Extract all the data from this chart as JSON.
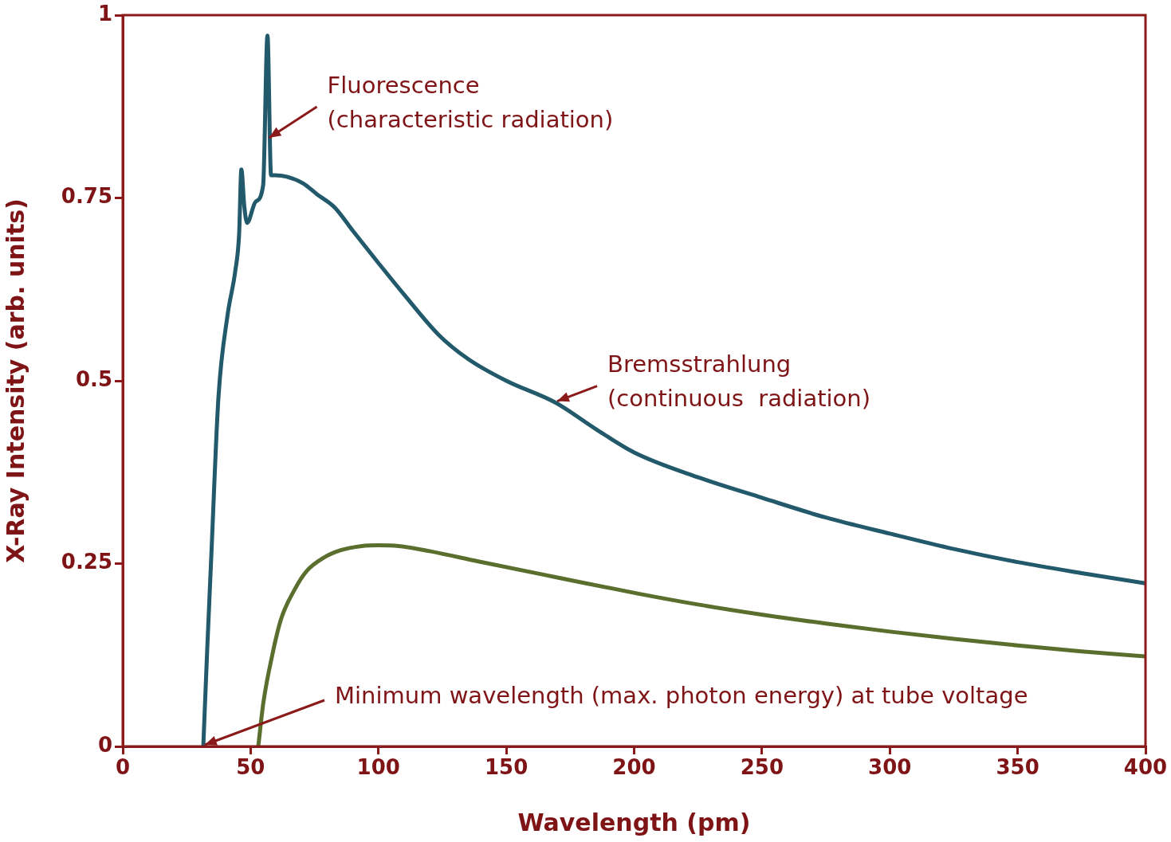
{
  "chart_data": {
    "type": "line",
    "xlabel": "Wavelength (pm)",
    "ylabel": "X-Ray Intensity (arb. units)",
    "xlim": [
      0,
      400
    ],
    "xticks": [
      0,
      50,
      100,
      150,
      200,
      250,
      300,
      350,
      400
    ],
    "ylim": [
      0,
      1
    ],
    "yticks": [
      0,
      0.25,
      0.5,
      0.75,
      1
    ],
    "grid": false,
    "legend": false,
    "marker": "none",
    "line_style": "solid",
    "series": [
      {
        "color": "#22596b",
        "x": [
          31.5,
          33,
          34.6,
          37.4,
          41,
          44,
          45.5,
          46.4,
          47.5,
          48.6,
          52,
          54.9,
          56.6,
          58,
          59.5,
          64.2,
          70.5,
          76,
          82.9,
          90,
          100,
          110,
          123.5,
          135,
          150,
          169.3,
          185,
          200,
          225,
          250,
          275,
          300,
          325,
          350,
          375,
          400
        ],
        "values": [
          0,
          0.13,
          0.258,
          0.476,
          0.59,
          0.65,
          0.7,
          0.789,
          0.74,
          0.716,
          0.745,
          0.767,
          0.972,
          0.781,
          0.781,
          0.779,
          0.77,
          0.755,
          0.737,
          0.705,
          0.661,
          0.618,
          0.563,
          0.53,
          0.5,
          0.47,
          0.434,
          0.402,
          0.368,
          0.34,
          0.313,
          0.291,
          0.27,
          0.252,
          0.237,
          0.223
        ]
      },
      {
        "color": "#5a6e2e",
        "x": [
          53,
          55,
          58.6,
          62,
          67.3,
          72,
          78.6,
          85,
          93.5,
          100,
          107.9,
          120,
          139,
          170,
          201.4,
          225,
          250.3,
          275,
          300,
          325,
          350,
          375,
          400
        ],
        "values": [
          0,
          0.06,
          0.127,
          0.175,
          0.215,
          0.24,
          0.258,
          0.268,
          0.274,
          0.275,
          0.274,
          0.267,
          0.253,
          0.231,
          0.209,
          0.194,
          0.18,
          0.168,
          0.157,
          0.147,
          0.138,
          0.13,
          0.123
        ]
      }
    ],
    "annotations": [
      {
        "text": "Fluorescence\n(characteristic radiation)",
        "x": 56.6,
        "y": 0.83
      },
      {
        "text": "Bremsstrahlung\n(continuous  radiation)",
        "x": 169.3,
        "y": 0.47
      },
      {
        "text": "Minimum wavelength (max. photon energy) at tube voltage",
        "x": 31.5,
        "y": 0
      }
    ]
  }
}
